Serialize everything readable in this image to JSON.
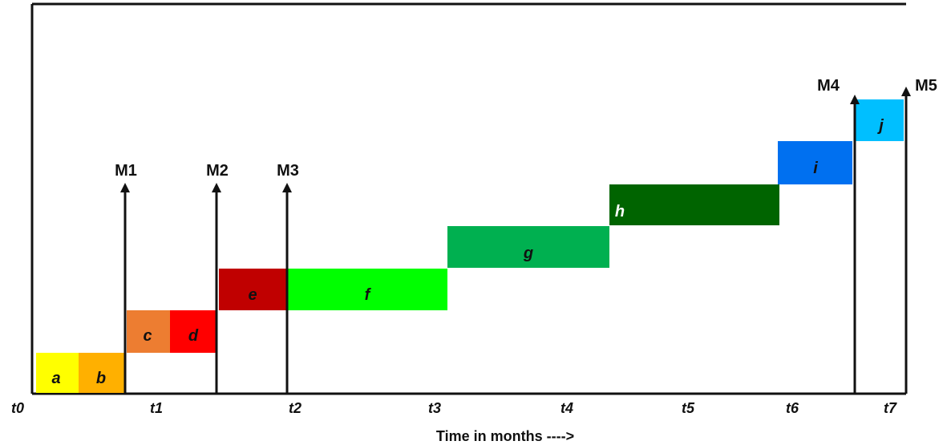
{
  "tasks": [
    {
      "label": "a",
      "color": "#FFFF00",
      "text_color": "#111111"
    },
    {
      "label": "b",
      "color": "#FFB000",
      "text_color": "#111111"
    },
    {
      "label": "c",
      "color": "#ED7D31",
      "text_color": "#111111"
    },
    {
      "label": "d",
      "color": "#FF0000",
      "text_color": "#111111"
    },
    {
      "label": "e",
      "color": "#C00000",
      "text_color": "#111111"
    },
    {
      "label": "f",
      "color": "#00FF00",
      "text_color": "#111111"
    },
    {
      "label": "g",
      "color": "#00B050",
      "text_color": "#111111"
    },
    {
      "label": "h",
      "color": "#006400",
      "text_color": "#FFFFFF"
    },
    {
      "label": "i",
      "color": "#0070F0",
      "text_color": "#111111"
    },
    {
      "label": "j",
      "color": "#00BFFF",
      "text_color": "#111111"
    }
  ],
  "milestones": [
    "M1",
    "M2",
    "M3",
    "M4",
    "M5"
  ],
  "ticks": [
    "t0",
    "t1",
    "t2",
    "t3",
    "t4",
    "t5",
    "t6",
    "t7"
  ],
  "x_axis_title": "Time in months ---->",
  "colors": {
    "frame": "#111111",
    "arrow": "#111111"
  }
}
